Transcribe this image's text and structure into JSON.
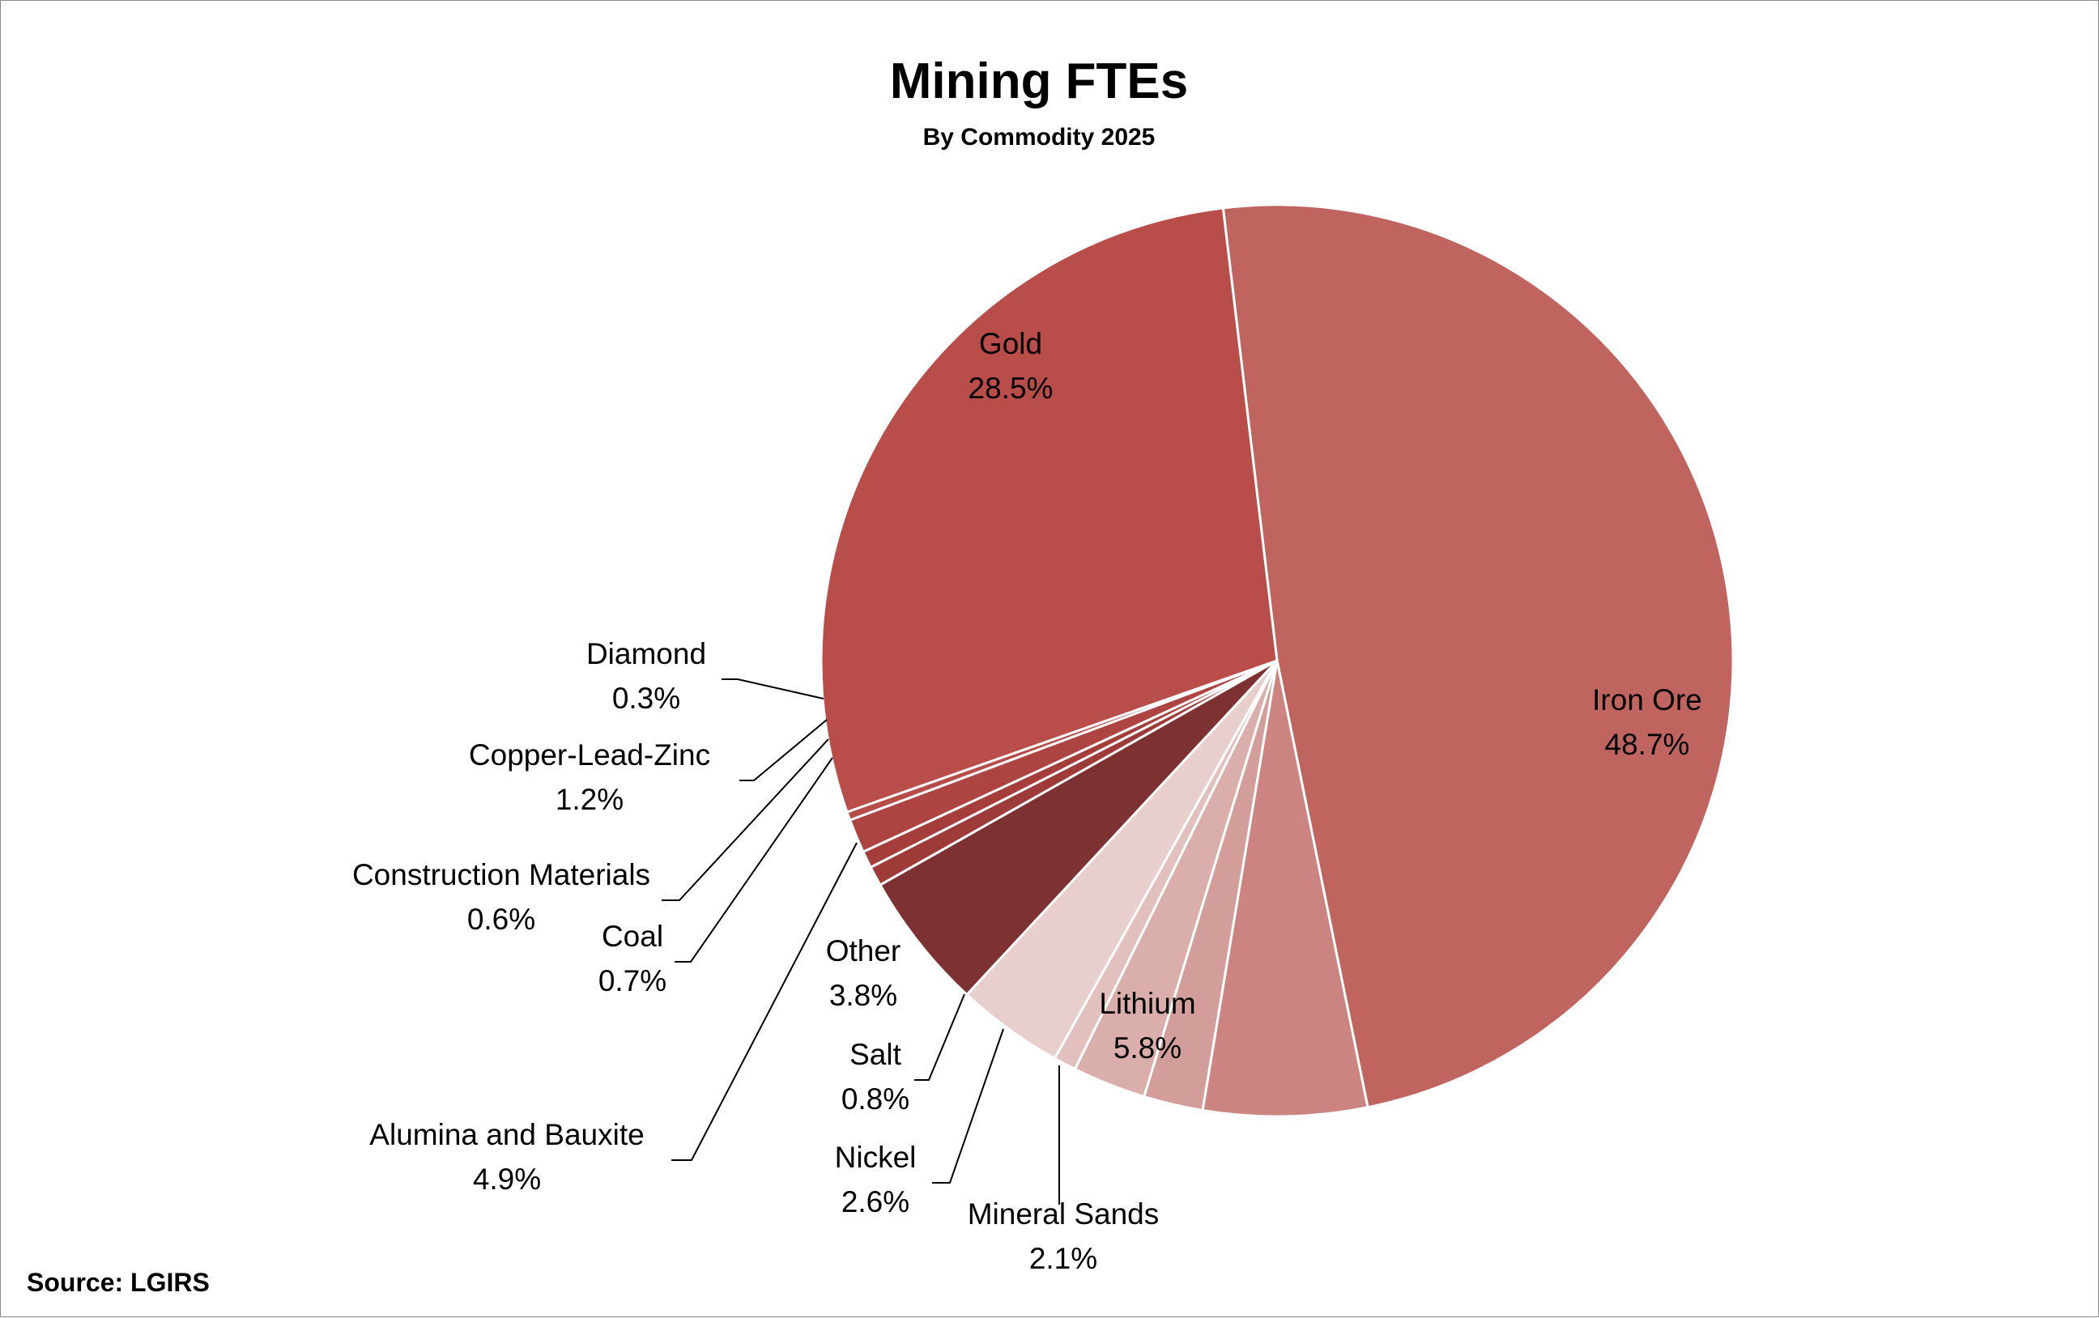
{
  "chart_data": {
    "type": "pie",
    "title": "Mining FTEs",
    "subtitle": "By Commodity 2025",
    "source": "Source:  LGIRS",
    "slices": [
      {
        "name": "Iron Ore",
        "value": 48.7,
        "label": "48.7%",
        "color": "#C0645F"
      },
      {
        "name": "Lithium",
        "value": 5.8,
        "label": "5.8%",
        "color": "#CC8480"
      },
      {
        "name": "Mineral Sands",
        "value": 2.1,
        "label": "2.1%",
        "color": "#D39D99"
      },
      {
        "name": "Nickel",
        "value": 2.6,
        "label": "2.6%",
        "color": "#DAAEAB"
      },
      {
        "name": "Salt",
        "value": 0.8,
        "label": "0.8%",
        "color": "#E1C0BE"
      },
      {
        "name": "Other",
        "value": 3.8,
        "label": "3.8%",
        "color": "#E8CFCE"
      },
      {
        "name": "Alumina and Bauxite",
        "value": 4.9,
        "label": "4.9%",
        "color": "#7E3131"
      },
      {
        "name": "Coal",
        "value": 0.7,
        "label": "0.7%",
        "color": "#9E3A38"
      },
      {
        "name": "Construction Materials",
        "value": 0.6,
        "label": "0.6%",
        "color": "#A53E3B"
      },
      {
        "name": "Copper-Lead-Zinc",
        "value": 1.2,
        "label": "1.2%",
        "color": "#AE4441"
      },
      {
        "name": "Diamond",
        "value": 0.3,
        "label": "0.3%",
        "color": "#B64B47"
      },
      {
        "name": "Gold",
        "value": 28.5,
        "label": "28.5%",
        "color": "#B84D4A"
      }
    ]
  }
}
